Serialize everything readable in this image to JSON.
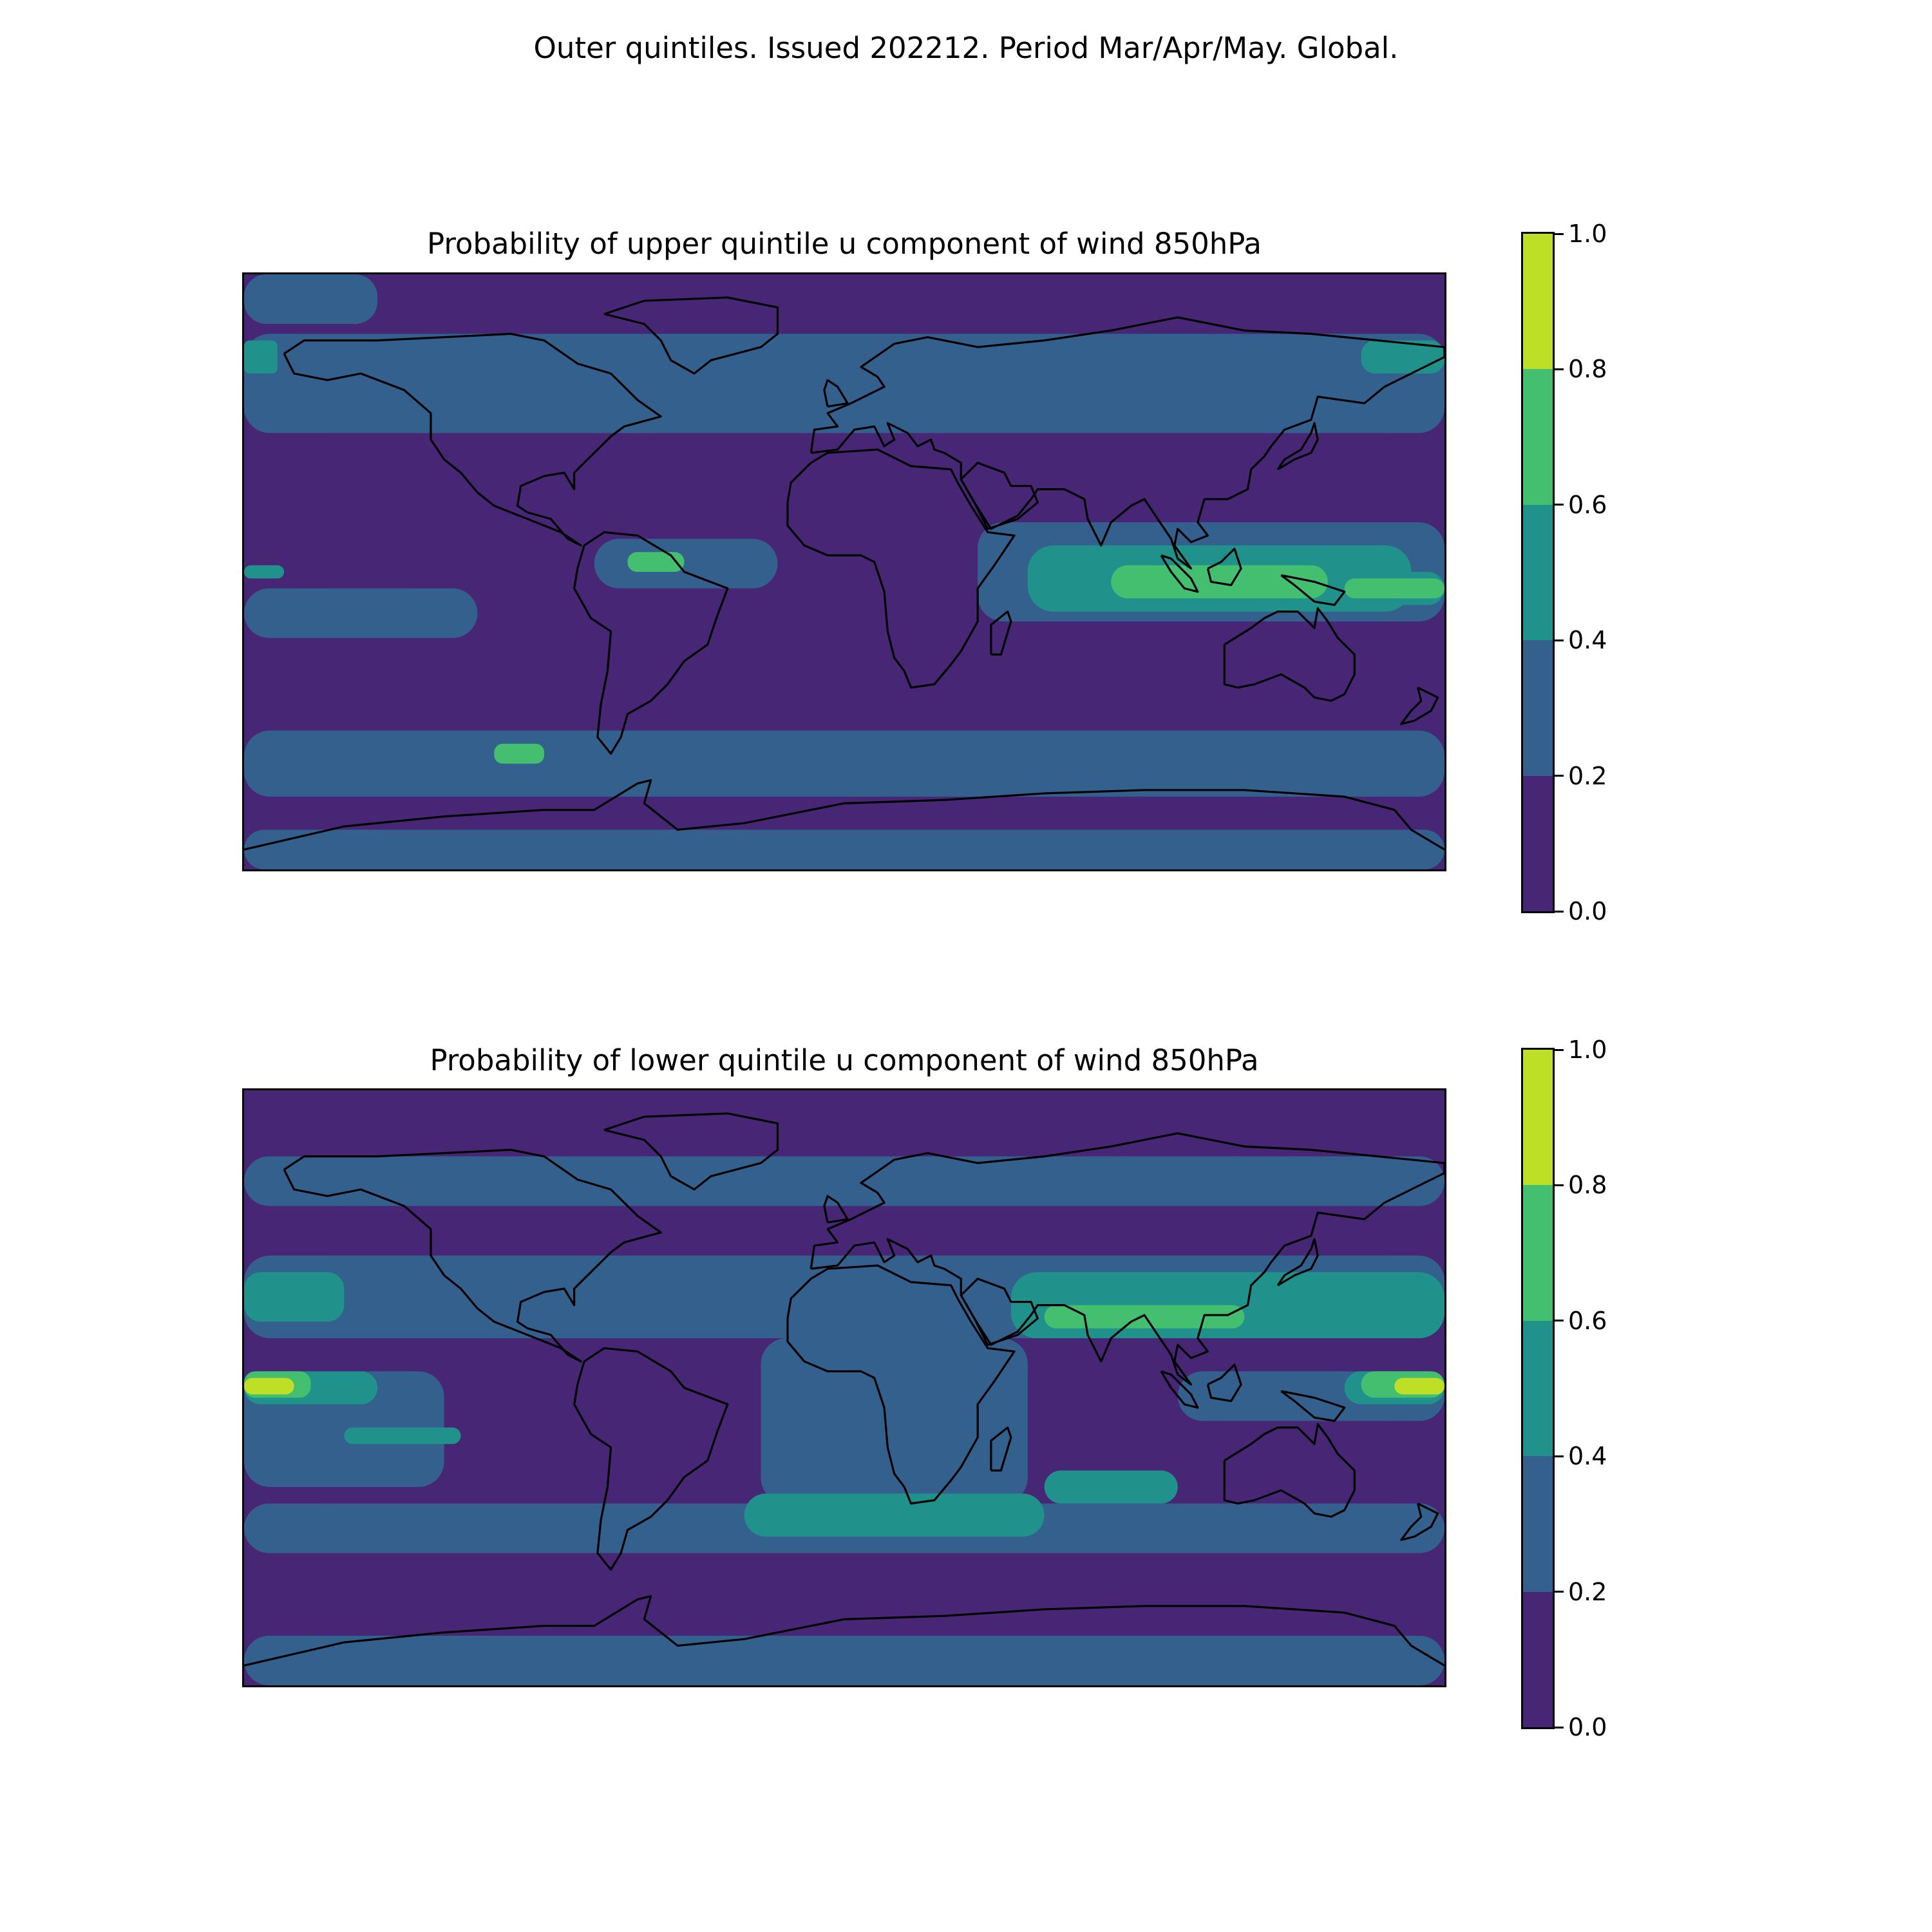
{
  "figure": {
    "suptitle": "Outer quintiles. Issued 202212. Period Mar/Apr/May. Global."
  },
  "colormap": {
    "levels": [
      0.0,
      0.2,
      0.4,
      0.6,
      0.8,
      1.0
    ],
    "colors": [
      "#472675",
      "#33608d",
      "#21918c",
      "#44bf70",
      "#bddf26"
    ],
    "coastline_color": "#000000"
  },
  "chart_data": [
    {
      "type": "heatmap",
      "title": "Probability of upper quintile u component of wind 850hPa",
      "colorbar": {
        "ticks": [
          "0.0",
          "0.2",
          "0.4",
          "0.6",
          "0.8",
          "1.0"
        ],
        "range": [
          0.0,
          1.0
        ]
      },
      "map": {
        "projection": "PlateCarree",
        "extent_lon": [
          -180,
          180
        ],
        "extent_lat": [
          -90,
          90
        ],
        "coastlines": true,
        "background_bin": 0,
        "regions": [
          {
            "bin": 1,
            "lon": [
              -180,
              180
            ],
            "lat": [
              -90,
              -78
            ]
          },
          {
            "bin": 1,
            "lon": [
              -180,
              180
            ],
            "lat": [
              -68,
              -48
            ]
          },
          {
            "bin": 1,
            "lon": [
              -180,
              180
            ],
            "lat": [
              42,
              72
            ]
          },
          {
            "bin": 1,
            "lon": [
              -180,
              -110
            ],
            "lat": [
              -20,
              -5
            ]
          },
          {
            "bin": 1,
            "lon": [
              -75,
              -20
            ],
            "lat": [
              -5,
              10
            ]
          },
          {
            "bin": 1,
            "lon": [
              40,
              180
            ],
            "lat": [
              -15,
              15
            ]
          },
          {
            "bin": 1,
            "lon": [
              -180,
              -140
            ],
            "lat": [
              75,
              90
            ]
          },
          {
            "bin": 2,
            "lon": [
              55,
              170
            ],
            "lat": [
              -12,
              8
            ]
          },
          {
            "bin": 2,
            "lon": [
              150,
              180
            ],
            "lat": [
              -10,
              0
            ]
          },
          {
            "bin": 2,
            "lon": [
              -180,
              -168
            ],
            "lat": [
              -2,
              2
            ]
          },
          {
            "bin": 2,
            "lon": [
              -180,
              -170
            ],
            "lat": [
              60,
              70
            ]
          },
          {
            "bin": 2,
            "lon": [
              155,
              180
            ],
            "lat": [
              60,
              70
            ]
          },
          {
            "bin": 3,
            "lon": [
              80,
              145
            ],
            "lat": [
              -8,
              2
            ]
          },
          {
            "bin": 3,
            "lon": [
              150,
              180
            ],
            "lat": [
              -8,
              -2
            ]
          },
          {
            "bin": 3,
            "lon": [
              -105,
              -90
            ],
            "lat": [
              -58,
              -52
            ]
          },
          {
            "bin": 3,
            "lon": [
              -65,
              -48
            ],
            "lat": [
              0,
              6
            ]
          }
        ]
      }
    },
    {
      "type": "heatmap",
      "title": "Probability of lower quintile u component of wind 850hPa",
      "colorbar": {
        "ticks": [
          "0.0",
          "0.2",
          "0.4",
          "0.6",
          "0.8",
          "1.0"
        ],
        "range": [
          0.0,
          1.0
        ]
      },
      "map": {
        "projection": "PlateCarree",
        "extent_lon": [
          -180,
          180
        ],
        "extent_lat": [
          -90,
          90
        ],
        "coastlines": true,
        "background_bin": 0,
        "regions": [
          {
            "bin": 1,
            "lon": [
              -180,
              180
            ],
            "lat": [
              -90,
              -75
            ]
          },
          {
            "bin": 1,
            "lon": [
              -180,
              180
            ],
            "lat": [
              -50,
              -35
            ]
          },
          {
            "bin": 1,
            "lon": [
              -180,
              180
            ],
            "lat": [
              15,
              40
            ]
          },
          {
            "bin": 1,
            "lon": [
              -25,
              55
            ],
            "lat": [
              -35,
              15
            ]
          },
          {
            "bin": 1,
            "lon": [
              -180,
              -120
            ],
            "lat": [
              -30,
              5
            ]
          },
          {
            "bin": 1,
            "lon": [
              100,
              180
            ],
            "lat": [
              -10,
              5
            ]
          },
          {
            "bin": 1,
            "lon": [
              -180,
              180
            ],
            "lat": [
              55,
              70
            ]
          },
          {
            "bin": 2,
            "lon": [
              -180,
              -140
            ],
            "lat": [
              -5,
              5
            ]
          },
          {
            "bin": 2,
            "lon": [
              -180,
              -150
            ],
            "lat": [
              20,
              35
            ]
          },
          {
            "bin": 2,
            "lon": [
              50,
              180
            ],
            "lat": [
              15,
              35
            ]
          },
          {
            "bin": 2,
            "lon": [
              -30,
              60
            ],
            "lat": [
              -45,
              -32
            ]
          },
          {
            "bin": 2,
            "lon": [
              -150,
              -115
            ],
            "lat": [
              -17,
              -12
            ]
          },
          {
            "bin": 2,
            "lon": [
              60,
              100
            ],
            "lat": [
              -35,
              -25
            ]
          },
          {
            "bin": 2,
            "lon": [
              150,
              180
            ],
            "lat": [
              -5,
              5
            ]
          },
          {
            "bin": 3,
            "lon": [
              -180,
              -160
            ],
            "lat": [
              -3,
              5
            ]
          },
          {
            "bin": 3,
            "lon": [
              60,
              120
            ],
            "lat": [
              18,
              25
            ]
          },
          {
            "bin": 3,
            "lon": [
              155,
              180
            ],
            "lat": [
              -3,
              5
            ]
          },
          {
            "bin": 4,
            "lon": [
              -180,
              -165
            ],
            "lat": [
              -2,
              3
            ]
          },
          {
            "bin": 4,
            "lon": [
              165,
              180
            ],
            "lat": [
              -2,
              3
            ]
          }
        ]
      }
    }
  ]
}
